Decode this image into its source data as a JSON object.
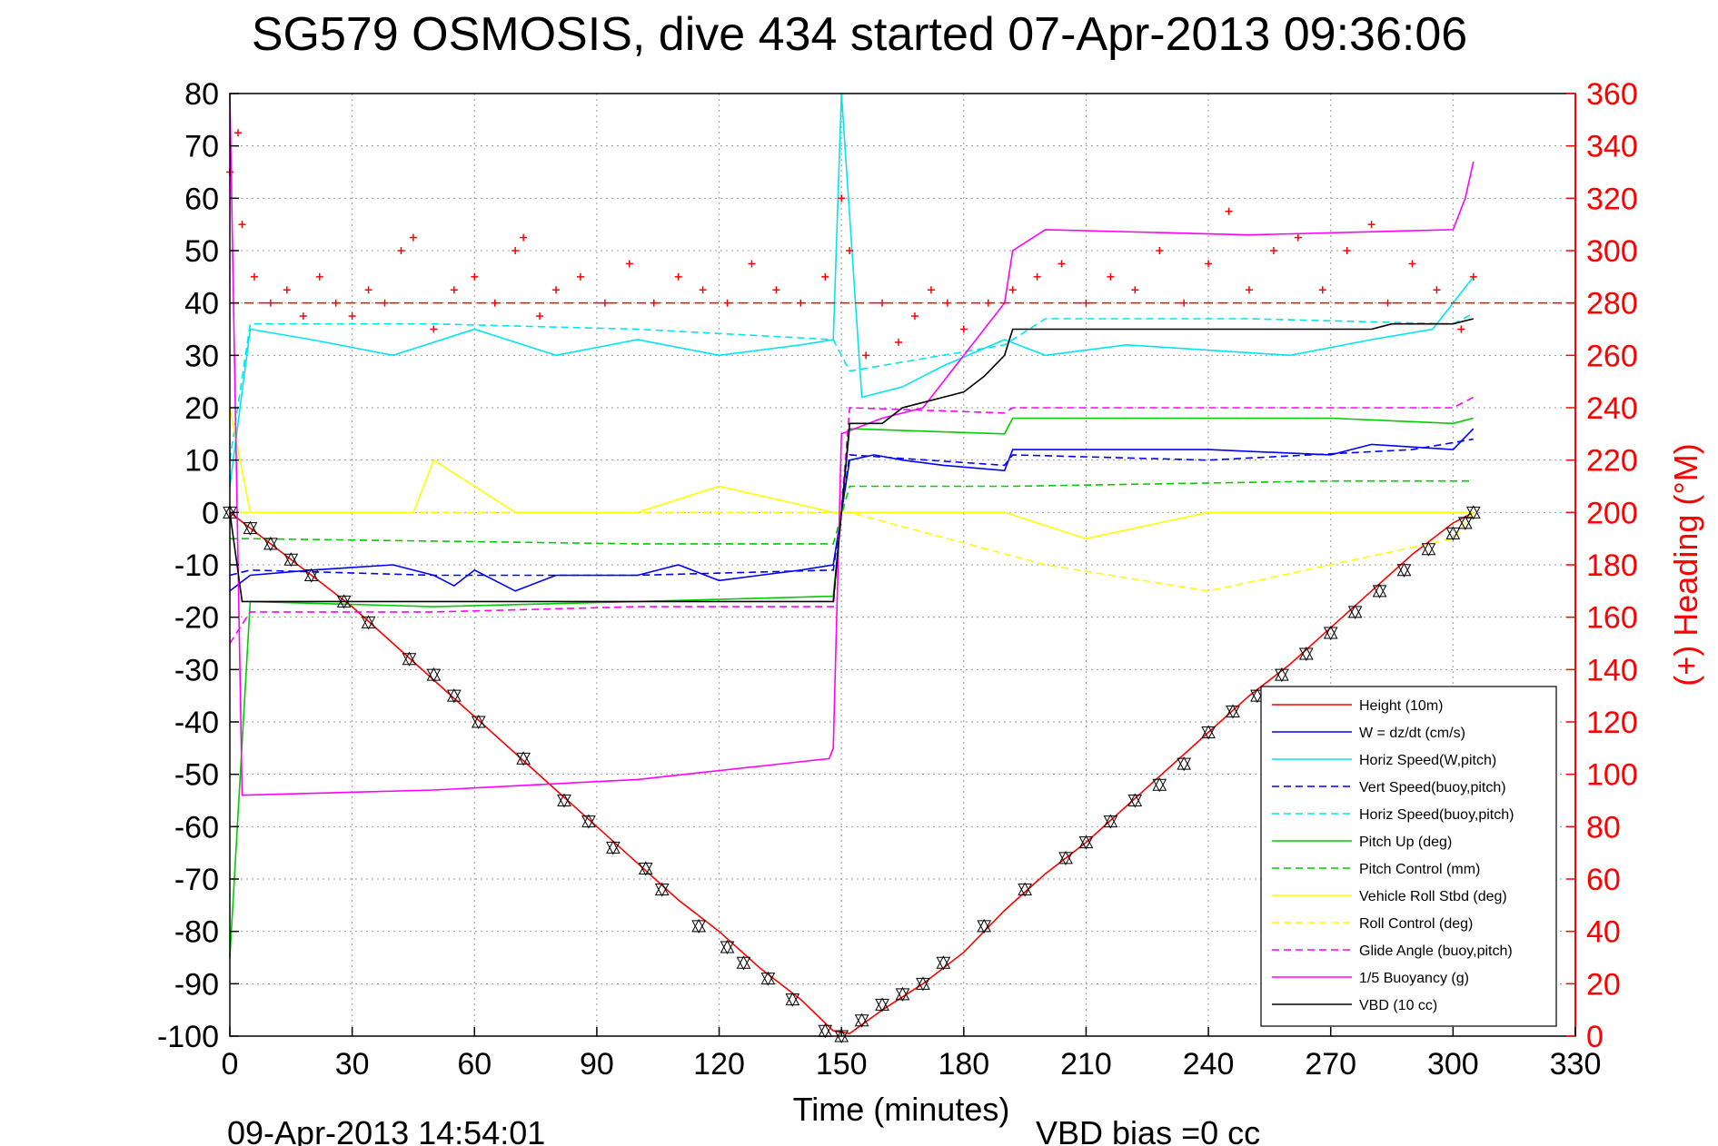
{
  "chart_data": {
    "type": "line",
    "title": "SG579 OSMOSIS, dive 434 started 07-Apr-2013 09:36:06",
    "xlabel": "Time (minutes)",
    "ylabel": "",
    "y2label": "(+) Heading (°M)",
    "xlim": [
      0,
      330
    ],
    "ylim": [
      -100,
      80
    ],
    "y2lim": [
      0,
      360
    ],
    "xticks": [
      0,
      30,
      60,
      90,
      120,
      150,
      180,
      210,
      240,
      270,
      300,
      330
    ],
    "yticks": [
      80,
      70,
      60,
      50,
      40,
      30,
      20,
      10,
      0,
      -10,
      -20,
      -30,
      -40,
      -50,
      -60,
      -70,
      -80,
      -90,
      -100
    ],
    "y2ticks": [
      360,
      340,
      320,
      300,
      280,
      260,
      240,
      220,
      200,
      180,
      160,
      140,
      120,
      100,
      80,
      60,
      40,
      20,
      0
    ],
    "grid": true,
    "legend_position": "bottom-right",
    "footer_timestamp": "09-Apr-2013 14:54:01",
    "footer_note": "VBD bias =0 cc",
    "series": [
      {
        "name": "Height (10m)",
        "color": "#ff0000",
        "style": "solid",
        "x": [
          0,
          10,
          20,
          30,
          40,
          50,
          60,
          70,
          80,
          90,
          100,
          110,
          120,
          130,
          140,
          148,
          152,
          160,
          170,
          180,
          190,
          200,
          210,
          220,
          230,
          240,
          250,
          260,
          270,
          280,
          290,
          300,
          305
        ],
        "y": [
          0,
          -6,
          -12,
          -18,
          -25,
          -32,
          -39,
          -46,
          -53,
          -60,
          -67,
          -74,
          -80,
          -87,
          -93,
          -99,
          -99.5,
          -95,
          -90,
          -84,
          -76,
          -69,
          -63,
          -56,
          -49,
          -42,
          -35,
          -29,
          -22,
          -15,
          -8,
          -2,
          0
        ]
      },
      {
        "name": "W = dz/dt (cm/s)",
        "color": "#0000ff",
        "style": "solid",
        "x": [
          0,
          5,
          20,
          40,
          50,
          55,
          60,
          70,
          80,
          100,
          110,
          120,
          130,
          140,
          148,
          152,
          158,
          165,
          175,
          190,
          192,
          210,
          240,
          270,
          280,
          300,
          305
        ],
        "y": [
          -15,
          -12,
          -11,
          -10,
          -12,
          -14,
          -11,
          -15,
          -12,
          -12,
          -10,
          -13,
          -12,
          -11,
          -10,
          10,
          11,
          10,
          9,
          8,
          12,
          12,
          12,
          11,
          13,
          12,
          16
        ]
      },
      {
        "name": "Horiz Speed(W,pitch)",
        "color": "#00e5ee",
        "style": "solid",
        "x": [
          0,
          5,
          20,
          40,
          60,
          80,
          100,
          120,
          140,
          148,
          150,
          155,
          165,
          175,
          190,
          200,
          220,
          240,
          260,
          280,
          295,
          300,
          305
        ],
        "y": [
          5,
          35,
          33,
          30,
          35,
          30,
          33,
          30,
          32,
          33,
          80,
          22,
          24,
          28,
          33,
          30,
          32,
          31,
          30,
          33,
          35,
          40,
          45
        ]
      },
      {
        "name": "Vert Speed(buoy,pitch)",
        "color": "#0000ff",
        "style": "dashed",
        "x": [
          0,
          5,
          50,
          100,
          148,
          152,
          190,
          192,
          240,
          290,
          305
        ],
        "y": [
          -12,
          -11,
          -12,
          -12,
          -11,
          11,
          9,
          11,
          10,
          12,
          14
        ]
      },
      {
        "name": "Horiz Speed(buoy,pitch)",
        "color": "#00e5ee",
        "style": "dashed",
        "x": [
          0,
          5,
          50,
          100,
          148,
          152,
          190,
          200,
          250,
          300,
          305
        ],
        "y": [
          10,
          36,
          36,
          35,
          33,
          27,
          32,
          37,
          37,
          36,
          38
        ]
      },
      {
        "name": "Pitch Up (deg)",
        "color": "#00cc00",
        "style": "solid",
        "x": [
          0,
          5,
          50,
          100,
          148,
          152,
          190,
          192,
          270,
          300,
          305
        ],
        "y": [
          -85,
          -17,
          -18,
          -17,
          -16,
          16,
          15,
          18,
          18,
          17,
          18
        ]
      },
      {
        "name": "Pitch Control (mm)",
        "color": "#00cc00",
        "style": "dashed",
        "x": [
          0,
          5,
          100,
          148,
          152,
          190,
          192,
          270,
          300,
          305
        ],
        "y": [
          -5,
          -5,
          -6,
          -6,
          5,
          5,
          5,
          6,
          6,
          6
        ]
      },
      {
        "name": "Vehicle Roll Stbd (deg)",
        "color": "#ffff00",
        "style": "solid",
        "x": [
          0,
          5,
          45,
          50,
          70,
          100,
          120,
          148,
          152,
          160,
          190,
          210,
          240,
          270,
          300,
          305
        ],
        "y": [
          20,
          0,
          0,
          10,
          0,
          0,
          5,
          0,
          0,
          0,
          0,
          -5,
          0,
          0,
          0,
          0
        ]
      },
      {
        "name": "Roll Control (deg)",
        "color": "#ffff00",
        "style": "dashed",
        "x": [
          0,
          5,
          50,
          100,
          148,
          152,
          200,
          240,
          300,
          305
        ],
        "y": [
          0,
          0,
          0,
          0,
          0,
          0,
          -10,
          -15,
          -5,
          0
        ]
      },
      {
        "name": "Glide Angle (buoy,pitch)",
        "color": "#ff00ff",
        "style": "dashed",
        "x": [
          0,
          5,
          50,
          100,
          148,
          152,
          190,
          192,
          270,
          300,
          305
        ],
        "y": [
          -25,
          -19,
          -19,
          -18,
          -18,
          20,
          19,
          20,
          20,
          20,
          22
        ]
      },
      {
        "name": "1/5 Buoyancy (g)",
        "color": "#ff00ff",
        "style": "solid",
        "x": [
          0,
          3,
          50,
          100,
          147,
          148,
          150,
          160,
          170,
          190,
          192,
          200,
          250,
          300,
          303,
          305
        ],
        "y": [
          80,
          -54,
          -53,
          -51,
          -47,
          -45,
          15,
          18,
          20,
          40,
          50,
          54,
          53,
          54,
          60,
          67
        ]
      },
      {
        "name": "VBD (10 cc)",
        "color": "#000000",
        "style": "solid",
        "x": [
          0,
          3,
          50,
          100,
          148,
          152,
          160,
          165,
          170,
          180,
          185,
          190,
          192,
          230,
          280,
          285,
          300,
          305
        ],
        "y": [
          0,
          -17,
          -17,
          -17,
          -17,
          17,
          17,
          20,
          21,
          23,
          26,
          30,
          35,
          35,
          35,
          36,
          36,
          37
        ]
      }
    ],
    "heading_series": {
      "name": "Heading",
      "color": "#ff0000",
      "marker": "+",
      "axis": "right",
      "reference_line": 280,
      "x": [
        0,
        2,
        3,
        6,
        10,
        14,
        18,
        22,
        26,
        30,
        34,
        38,
        42,
        45,
        50,
        55,
        60,
        65,
        70,
        72,
        76,
        80,
        86,
        92,
        98,
        104,
        110,
        116,
        122,
        128,
        134,
        140,
        146,
        150,
        152,
        156,
        160,
        164,
        168,
        172,
        176,
        180,
        186,
        192,
        198,
        204,
        210,
        216,
        222,
        228,
        234,
        240,
        245,
        250,
        256,
        262,
        268,
        274,
        280,
        284,
        290,
        296,
        302,
        305
      ],
      "y": [
        330,
        345,
        310,
        290,
        280,
        285,
        275,
        290,
        280,
        275,
        285,
        280,
        300,
        305,
        270,
        285,
        290,
        280,
        300,
        305,
        275,
        285,
        290,
        280,
        295,
        280,
        290,
        285,
        280,
        295,
        285,
        280,
        290,
        320,
        300,
        260,
        280,
        265,
        275,
        285,
        280,
        270,
        280,
        285,
        290,
        295,
        280,
        290,
        285,
        300,
        280,
        295,
        315,
        285,
        300,
        305,
        285,
        300,
        310,
        280,
        295,
        285,
        270,
        290
      ]
    },
    "dive_markers": {
      "x": [
        0,
        5,
        10,
        15,
        20,
        28,
        34,
        44,
        50,
        55,
        61,
        72,
        82,
        88,
        94,
        102,
        106,
        115,
        122,
        126,
        132,
        138,
        146,
        150,
        155,
        160,
        165,
        170,
        175,
        185,
        195,
        205,
        210,
        216,
        222,
        228,
        234,
        240,
        246,
        252,
        258,
        264,
        270,
        276,
        282,
        288,
        294,
        300,
        303,
        305
      ],
      "y": [
        0,
        -3,
        -6,
        -9,
        -12,
        -17,
        -21,
        -28,
        -31,
        -35,
        -40,
        -47,
        -55,
        -59,
        -64,
        -68,
        -72,
        -79,
        -83,
        -86,
        -89,
        -93,
        -99,
        -100,
        -97,
        -94,
        -92,
        -90,
        -86,
        -79,
        -72,
        -66,
        -63,
        -59,
        -55,
        -52,
        -48,
        -42,
        -38,
        -35,
        -31,
        -27,
        -23,
        -19,
        -15,
        -11,
        -7,
        -4,
        -2,
        0
      ]
    }
  }
}
